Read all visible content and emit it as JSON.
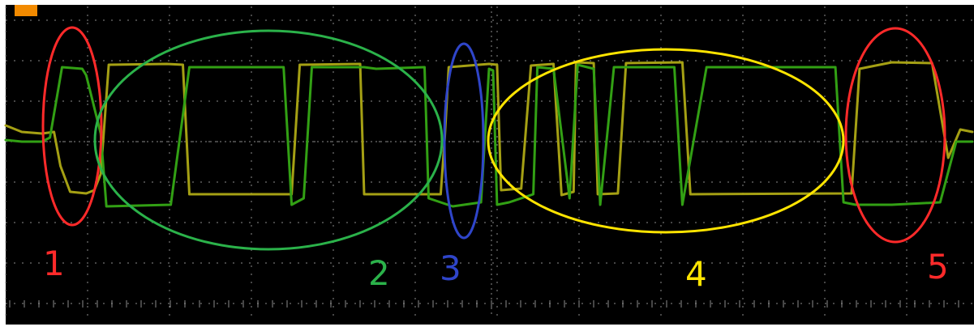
{
  "chart_data": {
    "type": "line",
    "title": "",
    "xlabel": "",
    "ylabel": "",
    "xlim": [
      0,
      1200
    ],
    "ylim": [
      -1,
      1
    ],
    "grid": true,
    "background": "#000000",
    "grid_color": "#8c8c8c",
    "trace_colors": {
      "yellow": "#a5a014",
      "green": "#32a014"
    },
    "series": [
      {
        "color_name": "yellow",
        "points": [
          [
            0,
            0.2
          ],
          [
            20,
            0.12
          ],
          [
            45,
            0.1
          ],
          [
            60,
            0.12
          ],
          [
            68,
            -0.3
          ],
          [
            80,
            -0.62
          ],
          [
            100,
            -0.64
          ],
          [
            110,
            -0.6
          ],
          [
            118,
            -0.4
          ],
          [
            128,
            0.95
          ],
          [
            200,
            0.96
          ],
          [
            220,
            0.95
          ],
          [
            228,
            -0.65
          ],
          [
            355,
            -0.65
          ],
          [
            365,
            0.95
          ],
          [
            440,
            0.96
          ],
          [
            445,
            -0.65
          ],
          [
            540,
            -0.65
          ],
          [
            545,
            0.05
          ],
          [
            550,
            0.92
          ],
          [
            600,
            0.96
          ],
          [
            610,
            0.95
          ],
          [
            615,
            -0.6
          ],
          [
            640,
            -0.58
          ],
          [
            652,
            0.94
          ],
          [
            680,
            0.96
          ],
          [
            690,
            -0.66
          ],
          [
            705,
            -0.62
          ],
          [
            708,
            0.98
          ],
          [
            730,
            0.97
          ],
          [
            735,
            -0.65
          ],
          [
            760,
            -0.64
          ],
          [
            770,
            0.97
          ],
          [
            840,
            0.98
          ],
          [
            850,
            -0.65
          ],
          [
            1050,
            -0.64
          ],
          [
            1060,
            0.9
          ],
          [
            1100,
            0.98
          ],
          [
            1150,
            0.97
          ],
          [
            1170,
            -0.2
          ],
          [
            1185,
            0.15
          ],
          [
            1200,
            0.12
          ]
        ]
      },
      {
        "color_name": "green",
        "points": [
          [
            0,
            0.02
          ],
          [
            20,
            0.0
          ],
          [
            45,
            0.0
          ],
          [
            55,
            0.05
          ],
          [
            70,
            0.92
          ],
          [
            95,
            0.9
          ],
          [
            100,
            0.82
          ],
          [
            118,
            0.1
          ],
          [
            125,
            -0.8
          ],
          [
            205,
            -0.78
          ],
          [
            228,
            0.92
          ],
          [
            345,
            0.92
          ],
          [
            355,
            -0.78
          ],
          [
            370,
            -0.7
          ],
          [
            380,
            0.92
          ],
          [
            445,
            0.92
          ],
          [
            460,
            0.9
          ],
          [
            520,
            0.92
          ],
          [
            525,
            -0.7
          ],
          [
            555,
            -0.8
          ],
          [
            590,
            -0.75
          ],
          [
            600,
            0.9
          ],
          [
            605,
            0.88
          ],
          [
            610,
            -0.78
          ],
          [
            625,
            -0.75
          ],
          [
            655,
            -0.65
          ],
          [
            660,
            0.92
          ],
          [
            680,
            0.9
          ],
          [
            700,
            -0.7
          ],
          [
            710,
            0.95
          ],
          [
            730,
            0.9
          ],
          [
            738,
            -0.78
          ],
          [
            755,
            0.92
          ],
          [
            830,
            0.92
          ],
          [
            840,
            -0.78
          ],
          [
            870,
            0.92
          ],
          [
            1030,
            0.92
          ],
          [
            1040,
            -0.75
          ],
          [
            1055,
            -0.78
          ],
          [
            1100,
            -0.78
          ],
          [
            1160,
            -0.75
          ],
          [
            1180,
            0.0
          ],
          [
            1200,
            0.0
          ]
        ]
      }
    ],
    "annotations": [
      {
        "label": "1",
        "color": "#ff2a2a"
      },
      {
        "label": "2",
        "color": "#2bb24a"
      },
      {
        "label": "3",
        "color": "#2f45c9"
      },
      {
        "label": "4",
        "color": "#ffe400"
      },
      {
        "label": "5",
        "color": "#ff2a2a"
      }
    ],
    "marker": {
      "color": "#f28a00"
    }
  }
}
